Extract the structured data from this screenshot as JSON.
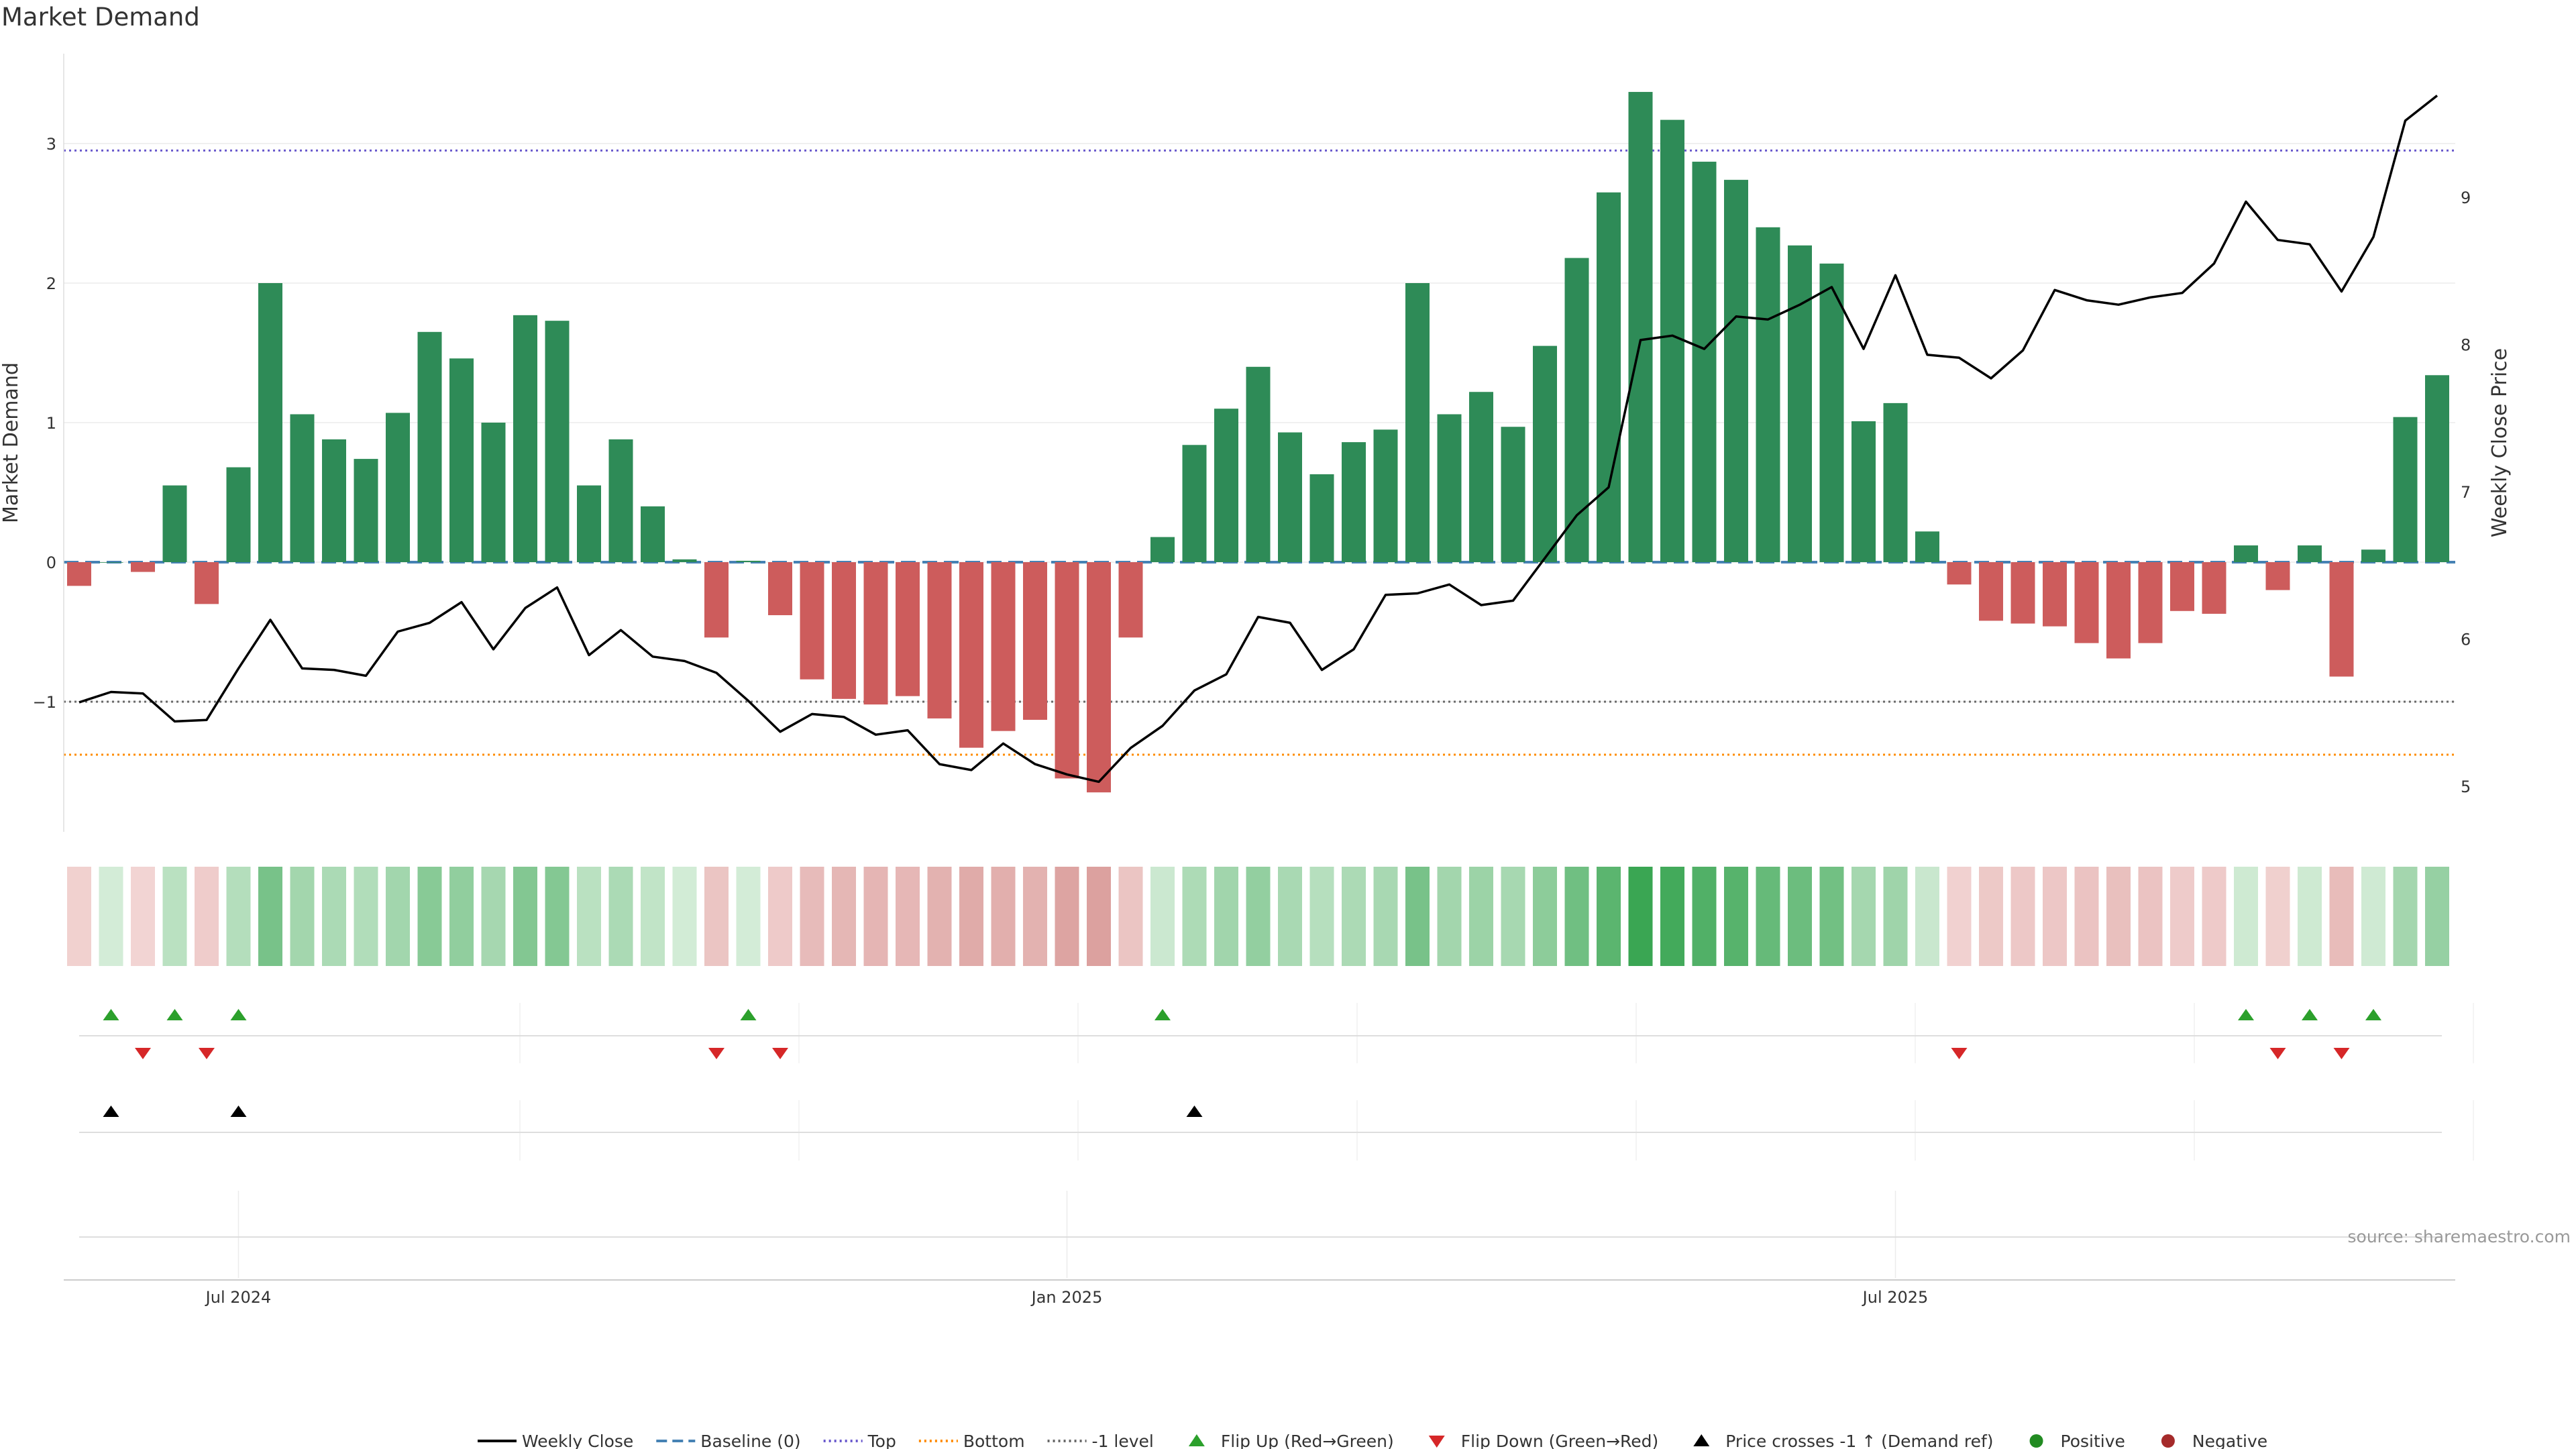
{
  "chart_data": {
    "type": "bar",
    "title": "Market Demand",
    "ylabel": "Market Demand",
    "y2label": "Weekly Close Price",
    "ylim": [
      -1.95,
      3.6
    ],
    "y2lim": [
      4.83,
      9.82
    ],
    "yticks": [
      -1,
      0,
      1,
      2,
      3
    ],
    "y2ticks": [
      5,
      6,
      7,
      8,
      9
    ],
    "reference_lines": {
      "baseline": 0,
      "top": 2.95,
      "bottom": -1.38,
      "minus_one": -1
    },
    "x_ticks": [
      {
        "index": 5,
        "label": "Jul 2024"
      },
      {
        "index": 31,
        "label": "Jan 2025"
      },
      {
        "index": 57,
        "label": "Jul 2025"
      }
    ],
    "series": [
      {
        "name": "Market Demand",
        "type": "bar",
        "values": [
          -0.17,
          0.0,
          -0.07,
          0.55,
          -0.3,
          0.68,
          2.0,
          1.06,
          0.88,
          0.74,
          1.07,
          1.65,
          1.46,
          1.0,
          1.77,
          1.73,
          0.55,
          0.88,
          0.4,
          0.02,
          -0.54,
          0.01,
          -0.38,
          -0.84,
          -0.98,
          -1.02,
          -0.96,
          -1.12,
          -1.33,
          -1.21,
          -1.13,
          -1.55,
          -1.65,
          -0.54,
          0.18,
          0.84,
          1.1,
          1.4,
          0.93,
          0.63,
          0.86,
          0.95,
          2.0,
          1.06,
          1.22,
          0.97,
          1.55,
          2.18,
          2.65,
          3.37,
          3.17,
          2.87,
          2.74,
          2.4,
          2.27,
          2.14,
          1.01,
          1.14,
          0.22,
          -0.16,
          -0.42,
          -0.44,
          -0.46,
          -0.58,
          -0.69,
          -0.58,
          -0.35,
          -0.37,
          0.12,
          -0.2,
          0.12,
          -0.82,
          0.09,
          1.04,
          1.34
        ]
      },
      {
        "name": "Weekly Close",
        "type": "line",
        "values": [
          5.57,
          5.64,
          5.63,
          5.44,
          5.45,
          5.8,
          6.13,
          5.8,
          5.79,
          5.75,
          6.05,
          6.11,
          6.25,
          5.93,
          6.21,
          6.35,
          5.89,
          6.06,
          5.88,
          5.85,
          5.77,
          5.58,
          5.37,
          5.49,
          5.47,
          5.35,
          5.38,
          5.15,
          5.11,
          5.29,
          5.15,
          5.08,
          5.03,
          5.26,
          5.41,
          5.65,
          5.76,
          6.15,
          6.11,
          5.79,
          5.93,
          6.3,
          6.31,
          6.37,
          6.23,
          6.26,
          6.55,
          6.84,
          7.03,
          8.03,
          8.06,
          7.97,
          8.19,
          8.17,
          8.27,
          8.39,
          7.97,
          8.47,
          7.93,
          7.91,
          7.77,
          7.96,
          8.37,
          8.3,
          8.27,
          8.32,
          8.35,
          8.55,
          8.97,
          8.71,
          8.68,
          8.36,
          8.73,
          9.52,
          9.69
        ]
      }
    ],
    "flip_up_indices": [
      1,
      3,
      5,
      21,
      34,
      68,
      70,
      72
    ],
    "flip_down_indices": [
      2,
      4,
      20,
      22,
      59,
      69,
      71
    ],
    "price_cross_indices": [
      1,
      5,
      35
    ],
    "colors": {
      "positive_bar": "#2e8b57",
      "negative_bar": "#cd5c5c",
      "line": "#000000",
      "baseline": "#4682b4",
      "top": "#6a5acd",
      "bottom": "#ff8c00",
      "minus_one": "#696969",
      "flip_up": "#2ca02c",
      "flip_down": "#d62728",
      "positive_dot": "#228b22",
      "negative_dot": "#a52a2a",
      "text": "#333333"
    },
    "legend": [
      {
        "label": "Weekly Close",
        "kind": "line",
        "style": "solid",
        "color": "#000000"
      },
      {
        "label": "Baseline (0)",
        "kind": "line",
        "style": "dashed",
        "color": "#4682b4"
      },
      {
        "label": "Top",
        "kind": "line",
        "style": "dotted",
        "color": "#6a5acd"
      },
      {
        "label": "Bottom",
        "kind": "line",
        "style": "dotted",
        "color": "#ff8c00"
      },
      {
        "label": "-1 level",
        "kind": "line",
        "style": "dotted",
        "color": "#696969"
      },
      {
        "label": "Flip Up (Red→Green)",
        "kind": "tri-up",
        "color": "#2ca02c"
      },
      {
        "label": "Flip Down (Green→Red)",
        "kind": "tri-down",
        "color": "#d62728"
      },
      {
        "label": "Price crosses -1 ↑ (Demand ref)",
        "kind": "tri-up",
        "color": "#000000"
      },
      {
        "label": "Positive",
        "kind": "dot",
        "color": "#228b22"
      },
      {
        "label": "Negative",
        "kind": "dot",
        "color": "#a52a2a"
      }
    ],
    "source": "source: sharemaestro.com"
  }
}
